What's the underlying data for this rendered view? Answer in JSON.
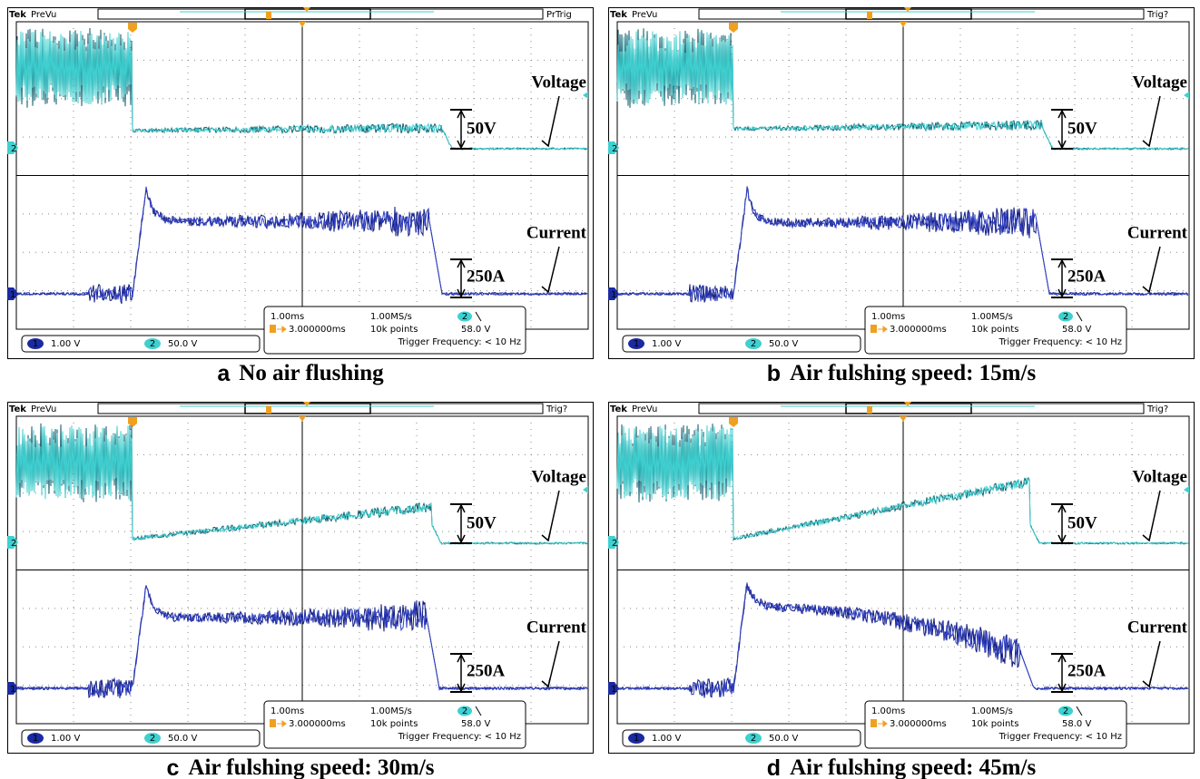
{
  "panels": [
    {
      "letter": "a",
      "caption": "No air flushing",
      "header": {
        "brand": "Tek",
        "mode": "PreVu",
        "status": "PrTrig"
      },
      "labels": {
        "voltage": "Voltage",
        "current": "Current",
        "v_scale": "50V",
        "i_scale": "250A"
      },
      "markers": {
        "ch2": "2",
        "ch1": "1"
      },
      "settings": {
        "timebase": "1.00ms",
        "sample_rate": "1.00MS/s",
        "trigger_pos": "3.000000ms",
        "points": "10k points",
        "trig_ch": "2",
        "trig_level": "58.0 V",
        "trig_freq": "Trigger Frequency: < 10 Hz"
      },
      "channels": [
        {
          "num": "1",
          "scale": "1.00 V"
        },
        {
          "num": "2",
          "scale": "50.0 V"
        }
      ]
    },
    {
      "letter": "b",
      "caption": "Air fulshing speed: 15m/s",
      "header": {
        "brand": "Tek",
        "mode": "PreVu",
        "status": "Trig?"
      },
      "labels": {
        "voltage": "Voltage",
        "current": "Current",
        "v_scale": "50V",
        "i_scale": "250A"
      },
      "markers": {
        "ch2": "2",
        "ch1": "1"
      },
      "settings": {
        "timebase": "1.00ms",
        "sample_rate": "1.00MS/s",
        "trigger_pos": "3.000000ms",
        "points": "10k points",
        "trig_ch": "2",
        "trig_level": "58.0 V",
        "trig_freq": "Trigger Frequency: < 10 Hz"
      },
      "channels": [
        {
          "num": "1",
          "scale": "1.00 V"
        },
        {
          "num": "2",
          "scale": "50.0 V"
        }
      ]
    },
    {
      "letter": "c",
      "caption": "Air fulshing speed: 30m/s",
      "header": {
        "brand": "Tek",
        "mode": "PreVu",
        "status": "Trig?"
      },
      "labels": {
        "voltage": "Voltage",
        "current": "Current",
        "v_scale": "50V",
        "i_scale": "250A"
      },
      "markers": {
        "ch2": "2",
        "ch1": "1"
      },
      "settings": {
        "timebase": "1.00ms",
        "sample_rate": "1.00MS/s",
        "trigger_pos": "3.000000ms",
        "points": "10k points",
        "trig_ch": "2",
        "trig_level": "58.0 V",
        "trig_freq": "Trigger Frequency: < 10 Hz"
      },
      "channels": [
        {
          "num": "1",
          "scale": "1.00 V"
        },
        {
          "num": "2",
          "scale": "50.0 V"
        }
      ]
    },
    {
      "letter": "d",
      "caption": "Air fulshing speed: 45m/s",
      "header": {
        "brand": "Tek",
        "mode": "PreVu",
        "status": "Trig?"
      },
      "labels": {
        "voltage": "Voltage",
        "current": "Current",
        "v_scale": "50V",
        "i_scale": "250A"
      },
      "markers": {
        "ch2": "2",
        "ch1": "1"
      },
      "settings": {
        "timebase": "1.00ms",
        "sample_rate": "1.00MS/s",
        "trigger_pos": "3.000000ms",
        "points": "10k points",
        "trig_ch": "2",
        "trig_level": "58.0 V",
        "trig_freq": "Trigger Frequency: < 10 Hz"
      },
      "channels": [
        {
          "num": "1",
          "scale": "1.00 V"
        },
        {
          "num": "2",
          "scale": "50.0 V"
        }
      ]
    }
  ]
}
